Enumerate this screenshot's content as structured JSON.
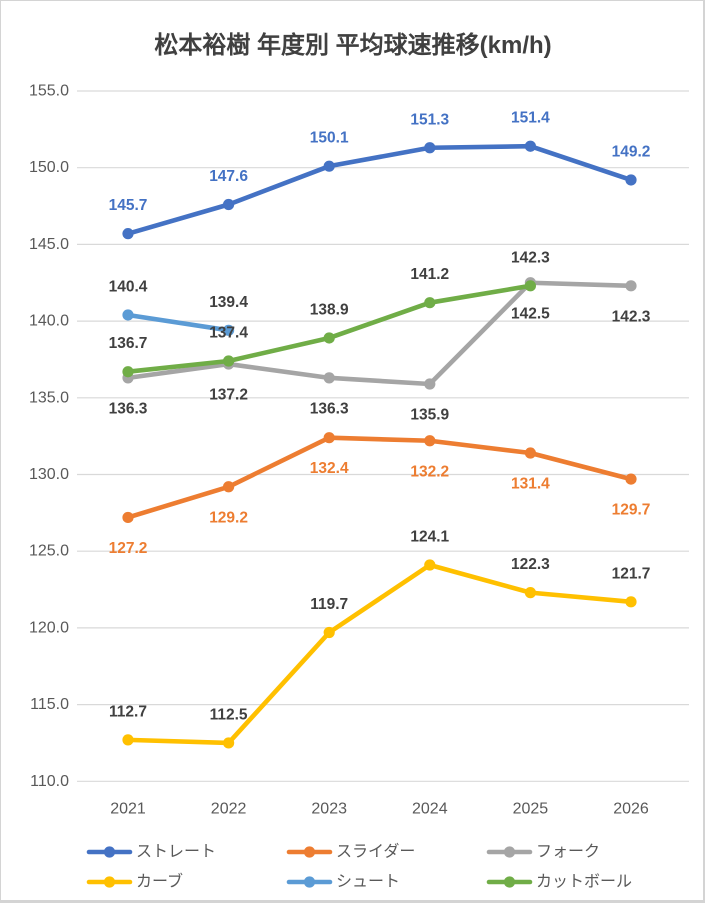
{
  "chart_data": {
    "type": "line",
    "title": "松本裕樹 年度別 平均球速推移(km/h)",
    "xlabel": "",
    "ylabel": "",
    "categories": [
      "2021",
      "2022",
      "2023",
      "2024",
      "2025",
      "2026"
    ],
    "ylim": [
      110,
      155
    ],
    "ytick_step": 5,
    "yticks": [
      "155.0",
      "150.0",
      "145.0",
      "140.0",
      "135.0",
      "130.0",
      "125.0",
      "120.0",
      "115.0",
      "110.0"
    ],
    "grid": "horizontal",
    "legend_position": "bottom",
    "colors": {
      "grid": "#D9D9D9",
      "axis_text": "#595959",
      "title_text": "#404040",
      "neutral_label": "#404040"
    },
    "series": [
      {
        "name": "ストレート",
        "color": "#4472C4",
        "label_color": "#4472C4",
        "label_pos": "above",
        "values": [
          145.7,
          147.6,
          150.1,
          151.3,
          151.4,
          149.2
        ]
      },
      {
        "name": "スライダー",
        "color": "#ED7D31",
        "label_color": "#ED7D31",
        "label_pos": "below",
        "values": [
          127.2,
          129.2,
          132.4,
          132.2,
          131.4,
          129.7
        ]
      },
      {
        "name": "フォーク",
        "color": "#A5A5A5",
        "label_color": "#404040",
        "label_pos": "below",
        "values": [
          136.3,
          137.2,
          136.3,
          135.9,
          142.5,
          142.3
        ]
      },
      {
        "name": "カーブ",
        "color": "#FFC000",
        "label_color": "#404040",
        "label_pos": "above",
        "values": [
          112.7,
          112.5,
          119.7,
          124.1,
          122.3,
          121.7
        ]
      },
      {
        "name": "シュート",
        "color": "#5B9BD5",
        "label_color": "#404040",
        "label_pos": "above",
        "values": [
          140.4,
          139.4,
          null,
          null,
          null,
          null
        ]
      },
      {
        "name": "カットボール",
        "color": "#70AD47",
        "label_color": "#404040",
        "label_pos": "above",
        "values": [
          136.7,
          137.4,
          138.9,
          141.2,
          142.3,
          null
        ]
      }
    ]
  }
}
